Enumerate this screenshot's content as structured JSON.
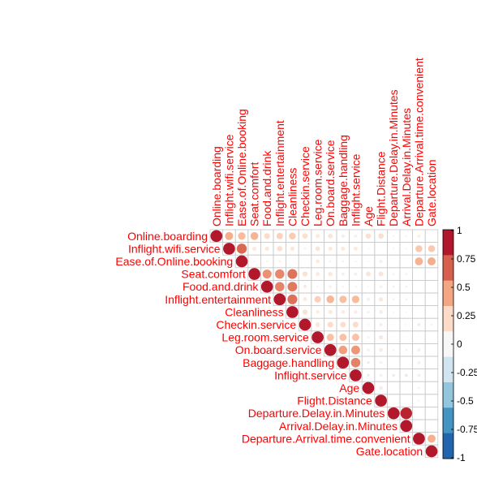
{
  "chart_data": {
    "type": "heatmap",
    "variables": [
      "Online.boarding",
      "Inflight.wifi.service",
      "Ease.of.Online.booking",
      "Seat.comfort",
      "Food.and.drink",
      "Inflight.entertainment",
      "Cleanliness",
      "Checkin.service",
      "Leg.room.service",
      "On.board.service",
      "Baggage.handling",
      "Inflight.service",
      "Age",
      "Flight.Distance",
      "Departure.Delay.in.Minutes",
      "Arrival.Delay.in.Minutes",
      "Departure.Arrival.time.convenient",
      "Gate.location"
    ],
    "matrix_upper": [
      [
        1.0,
        0.46,
        0.4,
        0.43,
        0.24,
        0.29,
        0.33,
        0.21,
        0.12,
        0.16,
        0.09,
        0.07,
        0.2,
        0.21,
        -0.02,
        -0.02,
        0.07,
        0.0
      ],
      [
        null,
        1.0,
        0.72,
        0.12,
        0.13,
        0.21,
        0.13,
        0.04,
        0.16,
        0.12,
        0.12,
        0.11,
        0.02,
        0.01,
        -0.02,
        -0.02,
        0.34,
        0.34
      ],
      [
        null,
        null,
        1.0,
        0.03,
        0.03,
        0.05,
        0.01,
        0.01,
        0.11,
        0.04,
        0.04,
        0.03,
        0.02,
        0.07,
        0.0,
        0.0,
        0.44,
        0.46
      ],
      [
        null,
        null,
        null,
        1.0,
        0.57,
        0.61,
        0.68,
        0.19,
        0.11,
        0.13,
        0.07,
        0.07,
        0.16,
        0.16,
        -0.03,
        -0.03,
        0.01,
        0.0
      ],
      [
        null,
        null,
        null,
        null,
        1.0,
        0.62,
        0.66,
        0.09,
        0.03,
        0.06,
        0.03,
        0.03,
        0.02,
        0.06,
        -0.03,
        -0.03,
        0.0,
        0.0
      ],
      [
        null,
        null,
        null,
        null,
        null,
        1.0,
        0.69,
        0.12,
        0.3,
        0.42,
        0.38,
        0.4,
        0.08,
        0.13,
        -0.03,
        -0.03,
        0.0,
        0.0
      ],
      [
        null,
        null,
        null,
        null,
        null,
        null,
        1.0,
        0.18,
        0.1,
        0.12,
        0.1,
        0.09,
        0.05,
        0.1,
        -0.02,
        -0.02,
        0.01,
        0.0
      ],
      [
        null,
        null,
        null,
        null,
        null,
        null,
        null,
        1.0,
        0.15,
        0.24,
        0.23,
        0.24,
        0.03,
        0.07,
        -0.02,
        -0.02,
        0.09,
        0.04
      ],
      [
        null,
        null,
        null,
        null,
        null,
        null,
        null,
        null,
        1.0,
        0.37,
        0.37,
        0.37,
        0.04,
        0.13,
        0.01,
        0.01,
        0.01,
        0.0
      ],
      [
        null,
        null,
        null,
        null,
        null,
        null,
        null,
        null,
        null,
        1.0,
        0.52,
        0.55,
        0.06,
        0.11,
        -0.03,
        -0.03,
        0.07,
        0.0
      ],
      [
        null,
        null,
        null,
        null,
        null,
        null,
        null,
        null,
        null,
        null,
        1.0,
        0.63,
        -0.05,
        0.06,
        0.01,
        0.0,
        0.07,
        0.0
      ],
      [
        null,
        null,
        null,
        null,
        null,
        null,
        null,
        null,
        null,
        null,
        null,
        1.0,
        -0.05,
        0.06,
        -0.05,
        -0.06,
        0.07,
        0.0
      ],
      [
        null,
        null,
        null,
        null,
        null,
        null,
        null,
        null,
        null,
        null,
        null,
        null,
        1.0,
        0.1,
        -0.01,
        -0.01,
        0.04,
        0.0
      ],
      [
        null,
        null,
        null,
        null,
        null,
        null,
        null,
        null,
        null,
        null,
        null,
        null,
        null,
        1.0,
        0.0,
        0.0,
        -0.02,
        0.01
      ],
      [
        null,
        null,
        null,
        null,
        null,
        null,
        null,
        null,
        null,
        null,
        null,
        null,
        null,
        null,
        1.0,
        0.96,
        0.0,
        0.01
      ],
      [
        null,
        null,
        null,
        null,
        null,
        null,
        null,
        null,
        null,
        null,
        null,
        null,
        null,
        null,
        null,
        1.0,
        0.0,
        0.01
      ],
      [
        null,
        null,
        null,
        null,
        null,
        null,
        null,
        null,
        null,
        null,
        null,
        null,
        null,
        null,
        null,
        null,
        1.0,
        0.45
      ],
      [
        null,
        null,
        null,
        null,
        null,
        null,
        null,
        null,
        null,
        null,
        null,
        null,
        null,
        null,
        null,
        null,
        null,
        1.0
      ]
    ],
    "colorbar": {
      "ticks": [
        "1",
        "0.75",
        "0.5",
        "0.25",
        "0",
        "-0.25",
        "-0.5",
        "-0.75",
        "-1"
      ],
      "colors_top_to_bottom": [
        "#b2182b",
        "#d6604d",
        "#f4a582",
        "#fddbc7",
        "#f7f7f7",
        "#d1e5f0",
        "#92c5de",
        "#4393c3",
        "#2166ac"
      ]
    },
    "grid": true,
    "legend": "right"
  }
}
